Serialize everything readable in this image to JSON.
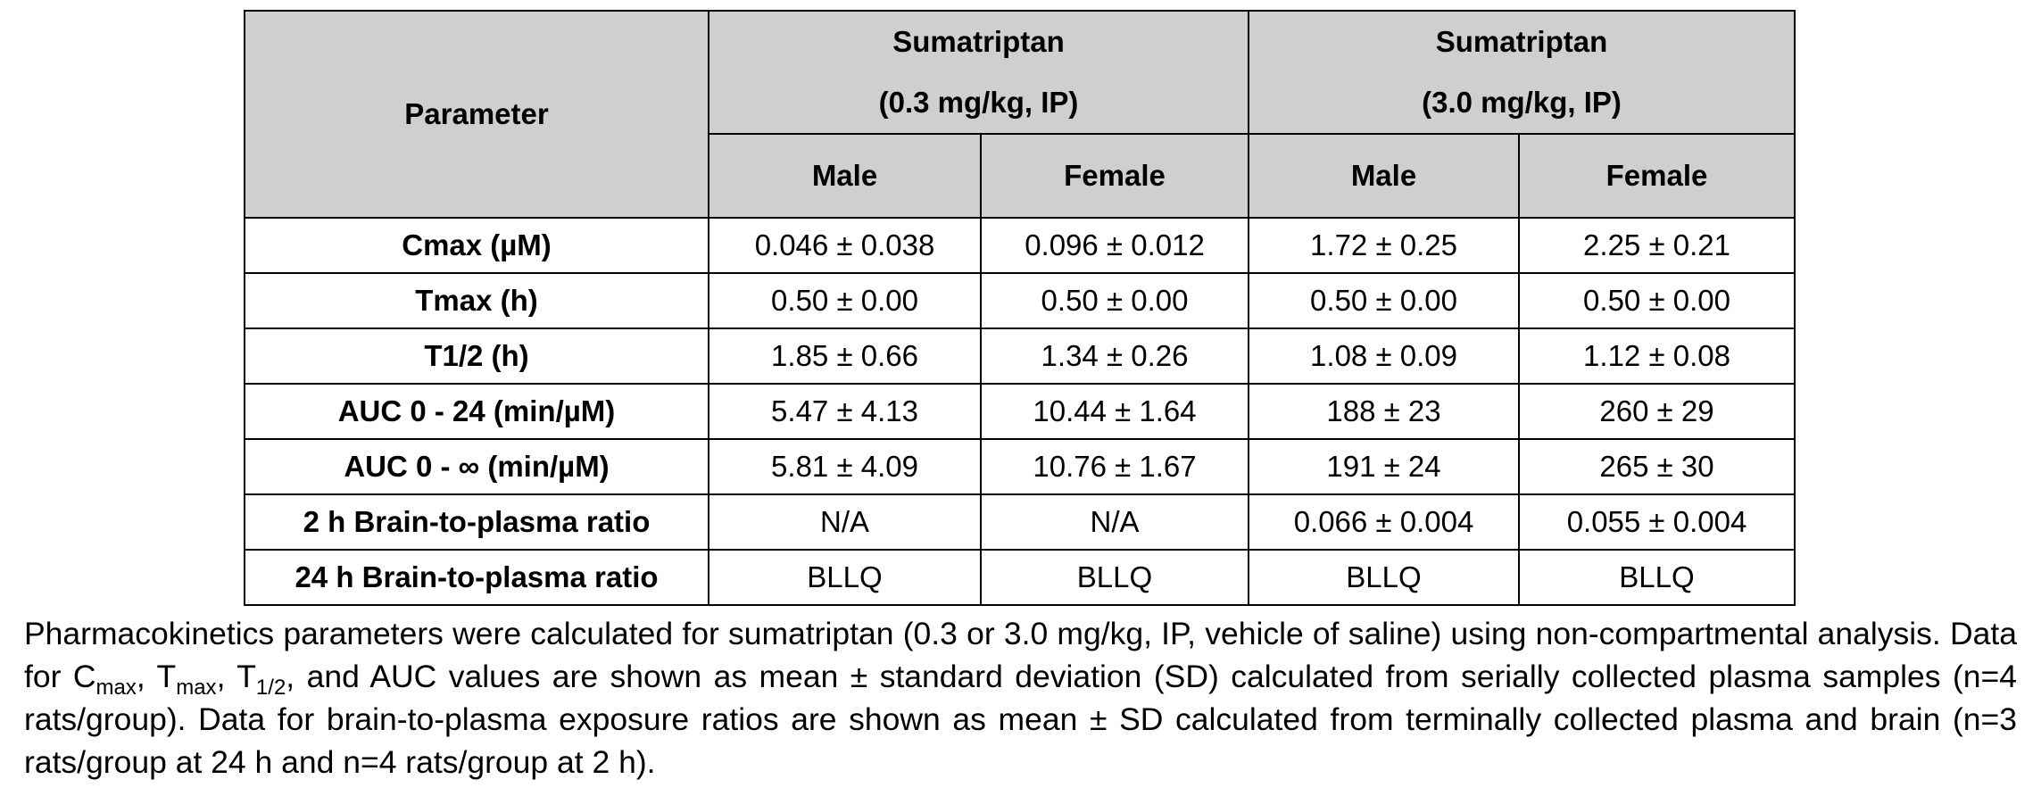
{
  "table": {
    "header": {
      "parameter": "Parameter",
      "group1_name": "Sumatriptan",
      "group1_dose": "(0.3 mg/kg, IP)",
      "group2_name": "Sumatriptan",
      "group2_dose": "(3.0 mg/kg, IP)",
      "male": "Male",
      "female": "Female"
    },
    "rows": [
      {
        "param": "Cmax (µM)",
        "m03": "0.046 ± 0.038",
        "f03": "0.096 ± 0.012",
        "m30": "1.72 ± 0.25",
        "f30": "2.25 ± 0.21"
      },
      {
        "param": "Tmax (h)",
        "m03": "0.50 ± 0.00",
        "f03": "0.50 ± 0.00",
        "m30": "0.50 ± 0.00",
        "f30": "0.50 ± 0.00"
      },
      {
        "param": "T1/2 (h)",
        "m03": "1.85 ± 0.66",
        "f03": "1.34 ± 0.26",
        "m30": "1.08 ± 0.09",
        "f30": "1.12 ± 0.08"
      },
      {
        "param": "AUC 0 - 24 (min/µM)",
        "m03": "5.47 ± 4.13",
        "f03": "10.44 ± 1.64",
        "m30": "188 ± 23",
        "f30": "260 ± 29"
      },
      {
        "param": "AUC 0 - ∞ (min/µM)",
        "m03": "5.81 ± 4.09",
        "f03": "10.76 ± 1.67",
        "m30": "191 ± 24",
        "f30": "265 ± 30"
      },
      {
        "param": "2 h Brain-to-plasma ratio",
        "m03": "N/A",
        "f03": "N/A",
        "m30": "0.066 ± 0.004",
        "f30": "0.055 ± 0.004"
      },
      {
        "param": "24 h Brain-to-plasma ratio",
        "m03": "BLLQ",
        "f03": "BLLQ",
        "m30": "BLLQ",
        "f30": "BLLQ"
      }
    ]
  },
  "caption": {
    "p1": "Pharmacokinetics parameters were calculated for sumatriptan (0.3 or 3.0 mg/kg, IP, vehicle of saline) using non-compartmental analysis. Data for C",
    "max1": "max",
    "sep1": ", T",
    "max2": "max",
    "sep2": ", T",
    "half": "1/2",
    "p2": ", and AUC values are shown as mean ± standard deviation (SD) calculated from serially collected plasma samples (n=4 rats/group). Data for brain-to-plasma exposure ratios are shown as mean ± SD calculated from terminally collected plasma and brain (n=3 rats/group at 24 h and n=4 rats/group at 2 h)."
  }
}
